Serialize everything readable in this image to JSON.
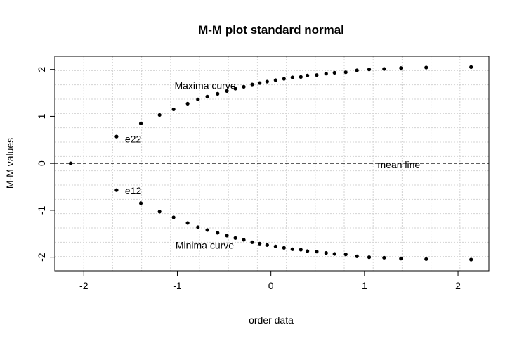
{
  "chart_data": {
    "type": "scatter",
    "title": "M-M plot standard normal",
    "xlabel": "order data",
    "ylabel": "M-M values",
    "xlim": [
      -2.31,
      2.33
    ],
    "ylim": [
      -2.29,
      2.28
    ],
    "x_ticks": [
      -2,
      -1,
      0,
      1,
      2
    ],
    "y_ticks": [
      -2,
      -1,
      0,
      1,
      2
    ],
    "x_tick_labels": [
      "-2",
      "-1",
      "0",
      "1",
      "2"
    ],
    "y_tick_labels": [
      "-2",
      "-1",
      "0",
      "1",
      "2"
    ],
    "grid": "on (dotted, 15 x 15)",
    "x": [
      -2.14,
      -1.65,
      -1.39,
      -1.19,
      -1.04,
      -0.89,
      -0.78,
      -0.68,
      -0.57,
      -0.47,
      -0.38,
      -0.29,
      -0.2,
      -0.12,
      -0.04,
      0.05,
      0.14,
      0.23,
      0.32,
      0.39,
      0.49,
      0.59,
      0.68,
      0.8,
      0.92,
      1.05,
      1.21,
      1.39,
      1.66,
      2.14
    ],
    "series": [
      {
        "name": "Maxima curve",
        "values": [
          0,
          0.57,
          0.85,
          1.03,
          1.15,
          1.27,
          1.36,
          1.42,
          1.48,
          1.54,
          1.59,
          1.63,
          1.68,
          1.71,
          1.74,
          1.77,
          1.8,
          1.83,
          1.84,
          1.87,
          1.88,
          1.91,
          1.93,
          1.94,
          1.98,
          2.0,
          2.01,
          2.03,
          2.04,
          2.05
        ]
      },
      {
        "name": "Minima curve",
        "values": [
          0,
          -0.57,
          -0.85,
          -1.03,
          -1.15,
          -1.27,
          -1.36,
          -1.42,
          -1.48,
          -1.54,
          -1.59,
          -1.63,
          -1.68,
          -1.71,
          -1.74,
          -1.77,
          -1.8,
          -1.83,
          -1.84,
          -1.87,
          -1.88,
          -1.91,
          -1.93,
          -1.94,
          -1.98,
          -2.0,
          -2.01,
          -2.03,
          -2.04,
          -2.05
        ]
      }
    ],
    "hline": {
      "y": 0,
      "style": "dashed",
      "label": "mean line"
    },
    "annotations": [
      {
        "text": "Maxima curve",
        "x": -1.03,
        "y": 1.66
      },
      {
        "text": "e22",
        "x": -1.56,
        "y": 0.52
      },
      {
        "text": "e12",
        "x": -1.56,
        "y": -0.58
      },
      {
        "text": "Minima curve",
        "x": -1.02,
        "y": -1.74
      },
      {
        "text": "mean line",
        "x": 1.14,
        "y": -0.03
      }
    ]
  }
}
